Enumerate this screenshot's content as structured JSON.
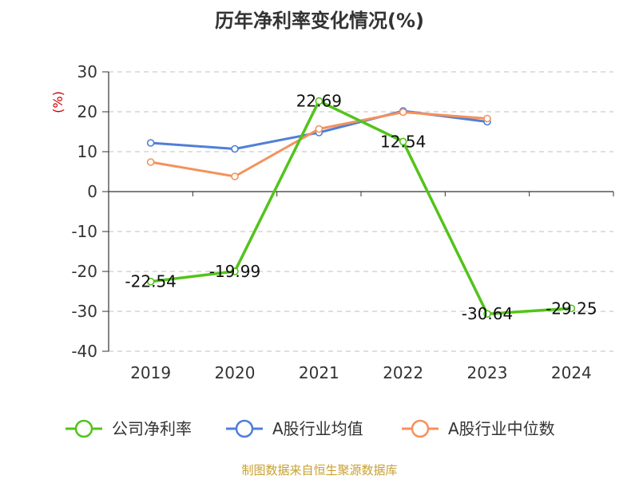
{
  "chart_data": {
    "type": "line",
    "title": "历年净利率变化情况(%)",
    "ylabel": "(%)",
    "xlabel": "",
    "categories": [
      "2019",
      "2020",
      "2021",
      "2022",
      "2023",
      "2024"
    ],
    "ylim": [
      -40,
      30
    ],
    "yticks": [
      30,
      20,
      10,
      0,
      -10,
      -20,
      -30,
      -40
    ],
    "grid": true,
    "legend_position": "bottom",
    "series": [
      {
        "name": "公司净利率",
        "color": "#52c41a",
        "values": [
          -22.54,
          -19.99,
          22.69,
          12.54,
          -30.64,
          -29.25
        ],
        "labels": [
          "-22.54",
          "-19.99",
          "22.69",
          "12.54",
          "-30.64",
          "-29.25"
        ]
      },
      {
        "name": "A股行业均值",
        "color": "#4f7fd8",
        "values": [
          12.2,
          10.7,
          14.8,
          20.2,
          17.5,
          null
        ]
      },
      {
        "name": "A股行业中位数",
        "color": "#f5915a",
        "values": [
          7.4,
          3.8,
          15.7,
          19.9,
          18.3,
          null
        ]
      }
    ]
  },
  "source_text": "制图数据来自恒生聚源数据库"
}
